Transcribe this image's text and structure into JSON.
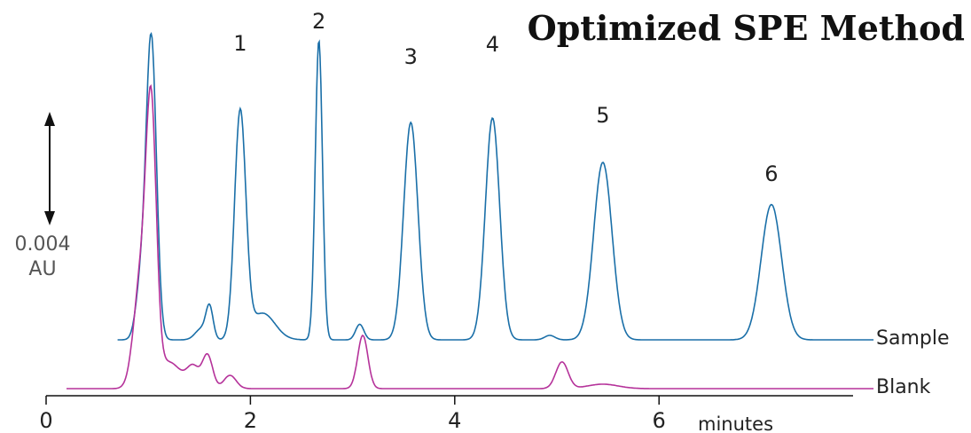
{
  "chart_data": {
    "type": "line",
    "title": "Optimized SPE Method",
    "xlabel": "minutes",
    "xlim": [
      0,
      8.1
    ],
    "x_ticks": [
      0,
      2,
      4,
      6
    ],
    "tick_labels": [
      "0",
      "2",
      "4",
      "6"
    ],
    "scale_bar": {
      "value": "0.004",
      "unit": "AU"
    },
    "peak_labels": [
      {
        "label": "1",
        "x": 1.9
      },
      {
        "label": "2",
        "x": 2.67
      },
      {
        "label": "3",
        "x": 3.57
      },
      {
        "label": "4",
        "x": 4.37
      },
      {
        "label": "5",
        "x": 5.45
      },
      {
        "label": "6",
        "x": 7.1
      }
    ],
    "series": [
      {
        "name": "Sample",
        "color": "#1a6fa8",
        "x_range": [
          0.7,
          8.1
        ],
        "baseline": 0.0,
        "peaks": [
          {
            "x": 0.93,
            "height": 0.0025,
            "width": 0.05
          },
          {
            "x": 1.03,
            "height": 0.0135,
            "width": 0.05
          },
          {
            "x": 1.52,
            "height": 0.0005,
            "width": 0.06
          },
          {
            "x": 1.6,
            "height": 0.0014,
            "width": 0.035
          },
          {
            "x": 1.9,
            "height": 0.0102,
            "width": 0.055
          },
          {
            "x": 2.12,
            "height": 0.0012,
            "width": 0.12
          },
          {
            "x": 2.67,
            "height": 0.0135,
            "width": 0.035
          },
          {
            "x": 3.07,
            "height": 0.0007,
            "width": 0.04
          },
          {
            "x": 3.57,
            "height": 0.0098,
            "width": 0.07
          },
          {
            "x": 4.37,
            "height": 0.01,
            "width": 0.07
          },
          {
            "x": 4.93,
            "height": 0.0002,
            "width": 0.05
          },
          {
            "x": 5.45,
            "height": 0.008,
            "width": 0.09
          },
          {
            "x": 7.1,
            "height": 0.0061,
            "width": 0.1
          }
        ]
      },
      {
        "name": "Blank",
        "color": "#b5329a",
        "x_range": [
          0.2,
          8.1
        ],
        "baseline": 0.0,
        "peaks": [
          {
            "x": 0.93,
            "height": 0.005,
            "width": 0.07
          },
          {
            "x": 1.03,
            "height": 0.0113,
            "width": 0.05
          },
          {
            "x": 1.2,
            "height": 0.0012,
            "width": 0.12
          },
          {
            "x": 1.44,
            "height": 0.0009,
            "width": 0.06
          },
          {
            "x": 1.58,
            "height": 0.0015,
            "width": 0.05
          },
          {
            "x": 1.8,
            "height": 0.0006,
            "width": 0.06
          },
          {
            "x": 3.1,
            "height": 0.0024,
            "width": 0.05
          },
          {
            "x": 5.05,
            "height": 0.0012,
            "width": 0.06
          },
          {
            "x": 5.45,
            "height": 0.0002,
            "width": 0.15
          }
        ]
      }
    ]
  }
}
